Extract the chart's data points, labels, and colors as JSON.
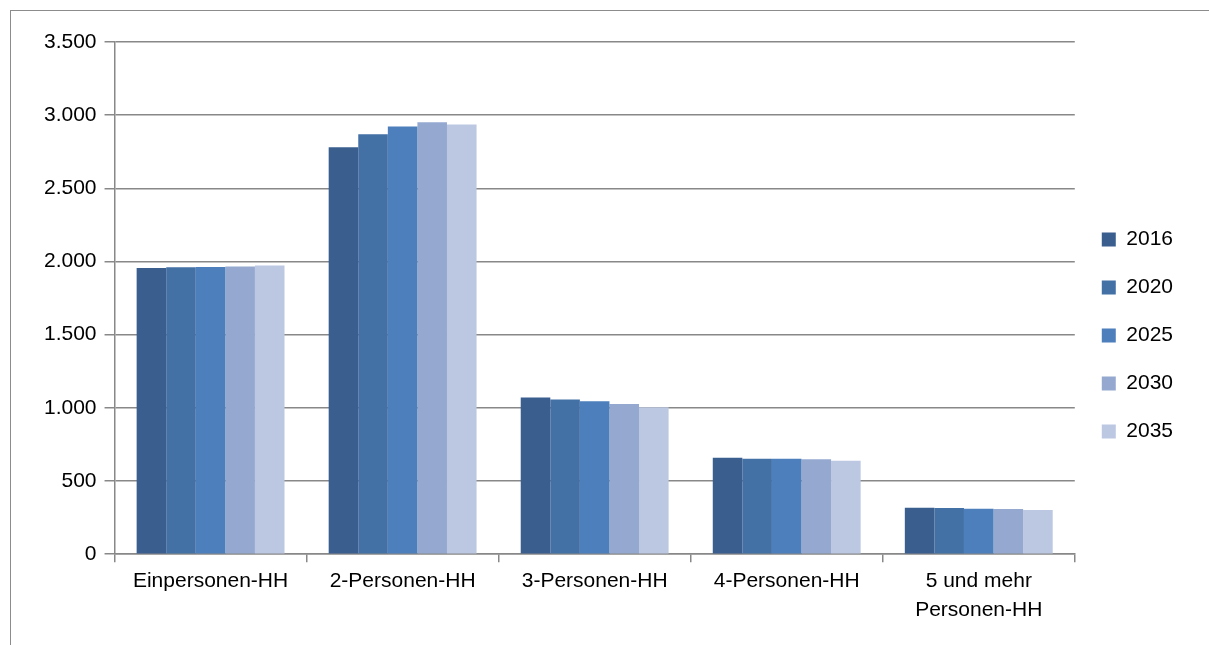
{
  "chart_data": {
    "type": "bar",
    "categories": [
      "Einpersonen-HH",
      "2-Personen-HH",
      "3-Personen-HH",
      "4-Personen-HH",
      "5 und mehr Personen-HH"
    ],
    "series": [
      {
        "name": "2016",
        "color": "#3a5f8f",
        "values": [
          1955,
          2780,
          1070,
          659,
          318
        ]
      },
      {
        "name": "2020",
        "color": "#4371a6",
        "values": [
          1960,
          2870,
          1057,
          652,
          316
        ]
      },
      {
        "name": "2025",
        "color": "#4d7fbc",
        "values": [
          1963,
          2923,
          1045,
          652,
          311
        ]
      },
      {
        "name": "2030",
        "color": "#95a9d0",
        "values": [
          1966,
          2952,
          1027,
          648,
          309
        ]
      },
      {
        "name": "2035",
        "color": "#bcc8e2",
        "values": [
          1972,
          2936,
          1004,
          639,
          302
        ]
      }
    ],
    "ylim": [
      0,
      3500
    ],
    "yticks": [
      0,
      500,
      {
        "value": 1000,
        "label": "1.000"
      },
      {
        "value": 1500,
        "label": "1.500"
      },
      {
        "value": 2000,
        "label": "2.000"
      },
      {
        "value": 2500,
        "label": "2.500"
      },
      {
        "value": 3000,
        "label": "3.000"
      },
      {
        "value": 3500,
        "label": "3.500"
      }
    ],
    "grid": "y",
    "legend": "right"
  }
}
